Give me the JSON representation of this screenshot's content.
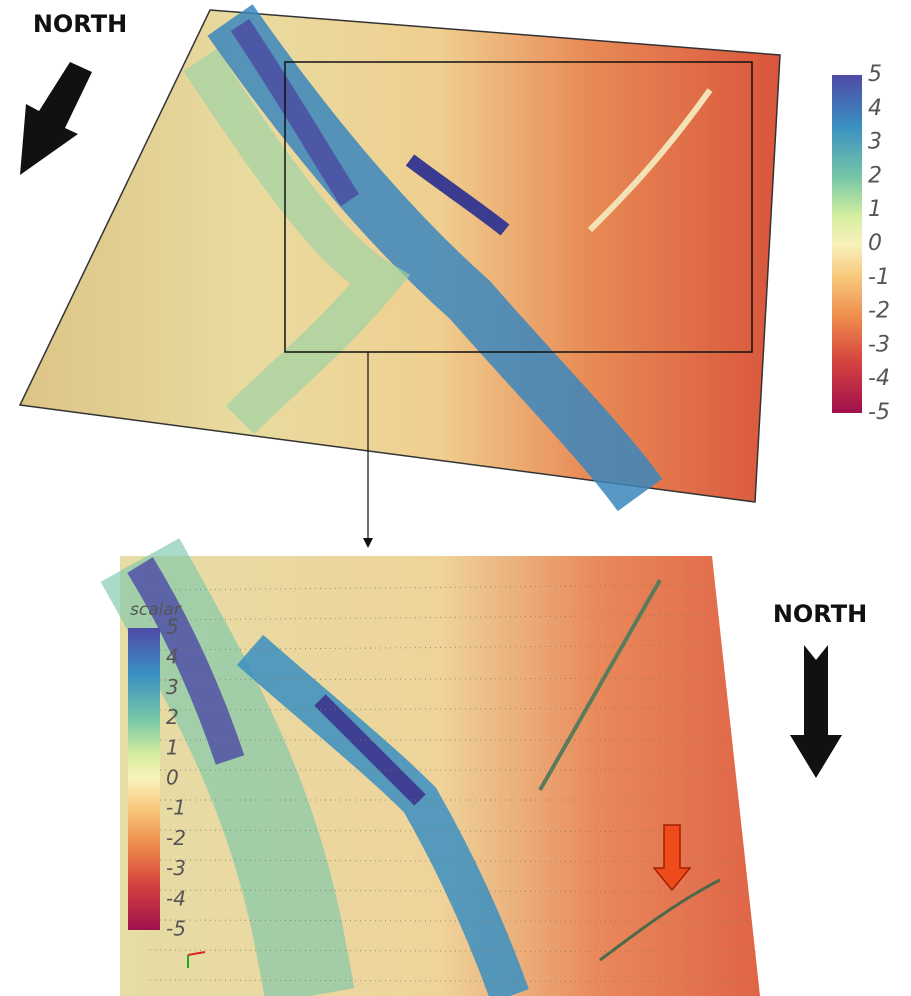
{
  "top_panel": {
    "north_label": "NORTH",
    "colorbar": {
      "ticks": [
        5,
        4,
        3,
        2,
        1,
        0,
        -1,
        -2,
        -3,
        -4,
        -5
      ]
    }
  },
  "bottom_panel": {
    "north_label": "NORTH",
    "colorbar": {
      "title": "scalar",
      "ticks": [
        5,
        4,
        3,
        2,
        1,
        0,
        -1,
        -2,
        -3,
        -4,
        -5
      ]
    }
  }
}
